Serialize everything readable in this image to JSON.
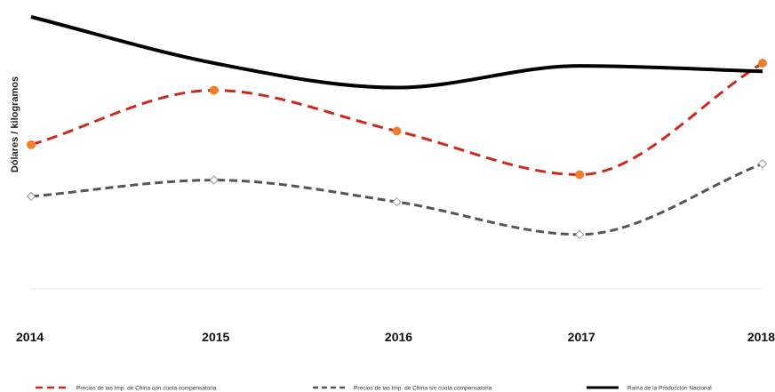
{
  "chart_data": {
    "type": "line",
    "title": "",
    "xlabel": "",
    "ylabel": "Dólares / kilogramos",
    "x": [
      "2014",
      "2015",
      "2016",
      "2017",
      "2018"
    ],
    "ylim": [
      0,
      100
    ],
    "grid": false,
    "legend_placement": "bottom",
    "series": [
      {
        "name": "Precios de las Imp. de China con cuota compensatoria",
        "values": [
          53,
          73,
          58,
          42,
          83
        ],
        "color": "#cc2a1e",
        "marker_color": "#ee7f2d",
        "style": "dashed",
        "marker": "filled-circle"
      },
      {
        "name": "Precios de las Imp. de China sin cuota compensatoria",
        "values": [
          34,
          40,
          32,
          20,
          46
        ],
        "color": "#555555",
        "marker_color": "#ffffff",
        "style": "dashed",
        "marker": "hollow-diamond"
      },
      {
        "name": "Rama de la Producción Nacional",
        "values": [
          100,
          83,
          74,
          82,
          80
        ],
        "color": "#000000",
        "style": "solid",
        "marker": "none"
      }
    ]
  }
}
